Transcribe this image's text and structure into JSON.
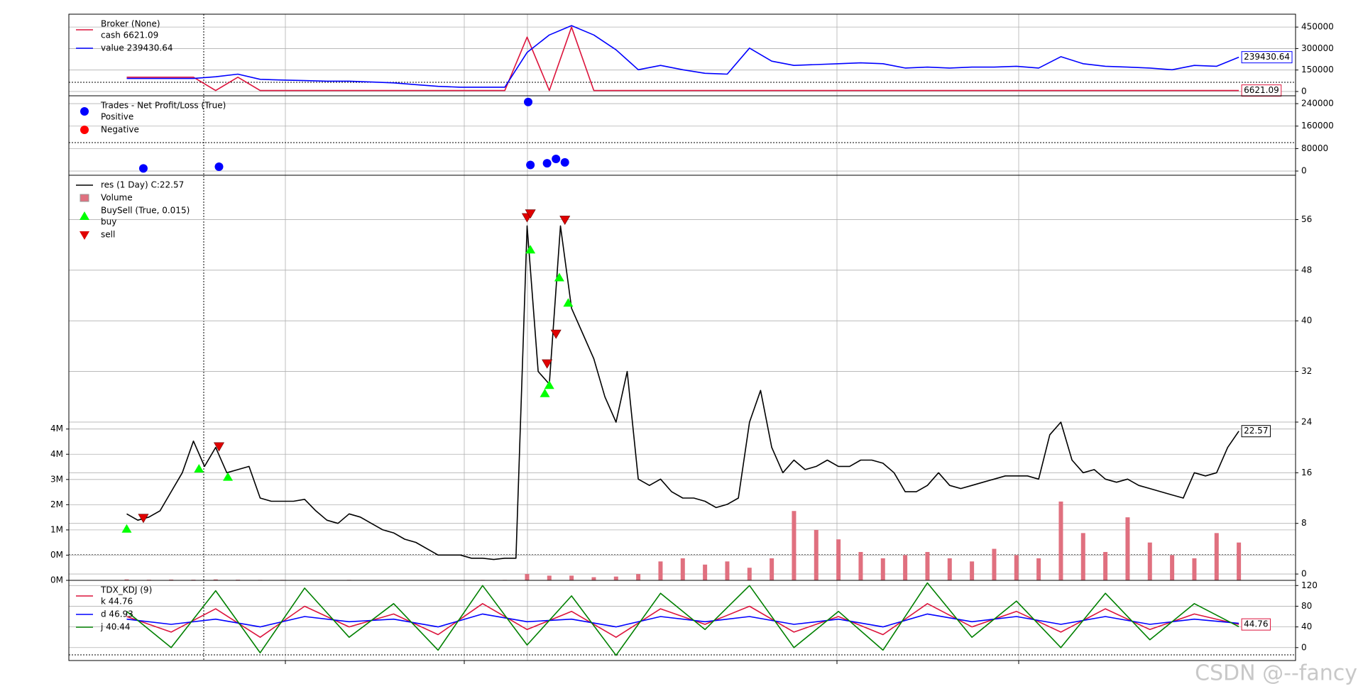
{
  "chart_data": [
    {
      "type": "line",
      "xlim": [
        -5.2,
        105.1
      ],
      "ylim": [
        -30000,
        540000
      ],
      "yticks": [
        0,
        150000,
        300000,
        450000
      ],
      "grid": true,
      "series": [
        {
          "name": "cash 6621.09",
          "group_title": "Broker (None)",
          "type": "line",
          "color": "#dc143c",
          "tag": true,
          "x": [
            0,
            2,
            4,
            6,
            8,
            10,
            12,
            14,
            16,
            18,
            20,
            22,
            24,
            26,
            28,
            30,
            32,
            34,
            36,
            38,
            40,
            42,
            44,
            46,
            48,
            50,
            52,
            54,
            56,
            58,
            60,
            62,
            64,
            66,
            68,
            70,
            72,
            74,
            76,
            78,
            80,
            82,
            84,
            86,
            88,
            90,
            92,
            94,
            96,
            98,
            100
          ],
          "values": [
            100000,
            100000,
            100000,
            100000,
            6621.09,
            100000,
            6621.09,
            6621.09,
            6621.09,
            6621.09,
            6621.09,
            6621.09,
            6621.09,
            6621.09,
            6621.09,
            6621.09,
            6621.09,
            6621.09,
            380000,
            6621.09,
            450000,
            6621.09,
            6621.09,
            6621.09,
            6621.09,
            6621.09,
            6621.09,
            6621.09,
            6621.09,
            6621.09,
            6621.09,
            6621.09,
            6621.09,
            6621.09,
            6621.09,
            6621.09,
            6621.09,
            6621.09,
            6621.09,
            6621.09,
            6621.09,
            6621.09,
            6621.09,
            6621.09,
            6621.09,
            6621.09,
            6621.09,
            6621.09,
            6621.09,
            6621.09,
            6621.09
          ]
        },
        {
          "name": "value 239430.64",
          "type": "line",
          "color": "#0000ff",
          "tag": true,
          "x": [
            0,
            2,
            4,
            6,
            8,
            10,
            12,
            14,
            16,
            18,
            20,
            22,
            24,
            26,
            28,
            30,
            32,
            34,
            36,
            38,
            40,
            42,
            44,
            46,
            48,
            50,
            52,
            54,
            56,
            58,
            60,
            62,
            64,
            66,
            68,
            70,
            72,
            74,
            76,
            78,
            80,
            82,
            84,
            86,
            88,
            90,
            92,
            94,
            96,
            98,
            100
          ],
          "values": [
            91000,
            91000,
            91000,
            91000,
            103000,
            121000,
            85000,
            80000,
            76000,
            72000,
            72000,
            66000,
            60000,
            48000,
            36000,
            30000,
            30000,
            30000,
            273000,
            395000,
            460000,
            395000,
            291000,
            152000,
            182000,
            152000,
            127000,
            121000,
            303000,
            212000,
            182000,
            188000,
            194000,
            200000,
            194000,
            164000,
            170000,
            164000,
            170000,
            170000,
            176000,
            164000,
            243000,
            194000,
            176000,
            170000,
            164000,
            152000,
            182000,
            176000,
            239430.64
          ]
        }
      ]
    },
    {
      "type": "scatter",
      "xlim": [
        -5.2,
        105.1
      ],
      "ylim": [
        -15000,
        268000
      ],
      "yticks": [
        0,
        80000,
        160000,
        240000
      ],
      "grid": true,
      "series": [
        {
          "name": "Positive",
          "group_title": "Trades - Net Profit/Loss (True)",
          "type": "scatter",
          "marker": "circle",
          "color": "#0000ff",
          "x": [
            1.5,
            8.3,
            36.1,
            36.3,
            37.8,
            38.6,
            39.4
          ],
          "values": [
            9200,
            15400,
            246000,
            21500,
            27700,
            43000,
            30800
          ]
        },
        {
          "name": "Negative",
          "type": "scatter",
          "marker": "circle",
          "color": "#ff0000",
          "x": [],
          "values": []
        }
      ]
    },
    {
      "type": "line",
      "xlim": [
        -5.2,
        105.1
      ],
      "ylim": [
        -1,
        63
      ],
      "yticks": [
        0,
        8,
        16,
        24,
        32,
        40,
        48,
        56
      ],
      "y2lim": [
        0,
        12850000
      ],
      "y2ticks": [
        {
          "value": 0,
          "label": "0M"
        },
        {
          "value": 800000,
          "label": "0M"
        },
        {
          "value": 1600000,
          "label": "1M"
        },
        {
          "value": 2400000,
          "label": "2M"
        },
        {
          "value": 3200000,
          "label": "3M"
        },
        {
          "value": 4000000,
          "label": "4M"
        },
        {
          "value": 4800000,
          "label": "4M"
        }
      ],
      "grid": true,
      "series": [
        {
          "name": "res (1 Day) C:22.57",
          "type": "line",
          "color": "#000000",
          "tag": true,
          "x": [
            0,
            1,
            2,
            3,
            4,
            5,
            6,
            7,
            8,
            9,
            10,
            11,
            12,
            13,
            14,
            15,
            16,
            17,
            18,
            19,
            20,
            21,
            22,
            23,
            24,
            25,
            26,
            27,
            28,
            29,
            30,
            31,
            32,
            33,
            34,
            35,
            36,
            37,
            38,
            39,
            40,
            41,
            42,
            43,
            44,
            45,
            46,
            47,
            48,
            49,
            50,
            51,
            52,
            53,
            54,
            55,
            56,
            57,
            58,
            59,
            60,
            61,
            62,
            63,
            64,
            65,
            66,
            67,
            68,
            69,
            70,
            71,
            72,
            73,
            74,
            75,
            76,
            77,
            78,
            79,
            80,
            81,
            82,
            83,
            84,
            85,
            86,
            87,
            88,
            89,
            90,
            91,
            92,
            93,
            94,
            95,
            96,
            97,
            98,
            99,
            100
          ],
          "values": [
            9.5,
            8.5,
            9,
            10,
            13,
            16,
            21,
            17,
            20,
            16,
            16.5,
            17,
            12,
            11.5,
            11.5,
            11.5,
            11.8,
            10,
            8.5,
            8,
            9.5,
            9,
            8,
            7,
            6.5,
            5.5,
            5,
            4,
            3,
            3,
            3,
            2.5,
            2.5,
            2.3,
            2.5,
            2.5,
            55,
            32,
            30,
            55,
            42,
            38,
            34,
            28,
            24,
            32,
            15,
            14,
            15,
            13,
            12,
            12,
            11.5,
            10.5,
            11,
            12,
            24,
            29,
            20,
            16,
            18,
            16.5,
            17,
            18,
            17,
            17,
            18,
            18,
            17.5,
            16,
            13,
            13,
            14,
            16,
            14,
            13.5,
            14,
            14.5,
            15,
            15.5,
            15.5,
            15.5,
            15,
            22,
            24,
            18,
            16,
            16.5,
            15,
            14.5,
            15,
            14,
            13.5,
            13,
            12.5,
            12,
            16,
            15.5,
            16,
            20,
            22.57
          ]
        },
        {
          "name": "Volume",
          "type": "bar",
          "axis": "y2",
          "color": "#e0707f",
          "x": [
            0,
            2,
            4,
            6,
            8,
            10,
            12,
            14,
            16,
            18,
            20,
            22,
            24,
            26,
            28,
            30,
            32,
            34,
            36,
            38,
            40,
            42,
            44,
            46,
            48,
            50,
            52,
            54,
            56,
            58,
            60,
            62,
            64,
            66,
            68,
            70,
            72,
            74,
            76,
            78,
            80,
            82,
            84,
            86,
            88,
            90,
            92,
            94,
            96,
            98,
            100
          ],
          "values": [
            30000,
            20000,
            25000,
            20000,
            30000,
            20000,
            15000,
            15000,
            10000,
            10000,
            15000,
            10000,
            10000,
            10000,
            10000,
            10000,
            15000,
            15000,
            200000,
            150000,
            150000,
            100000,
            120000,
            200000,
            600000,
            700000,
            500000,
            600000,
            400000,
            700000,
            2200000,
            1600000,
            1300000,
            900000,
            700000,
            800000,
            900000,
            700000,
            600000,
            1000000,
            800000,
            700000,
            2500000,
            1500000,
            900000,
            2000000,
            1200000,
            800000,
            700000,
            1500000,
            1200000
          ]
        },
        {
          "name": "buy",
          "group_title": "BuySell (True, 0.015)",
          "type": "scatter",
          "marker": "triangle-up",
          "color": "#00ff00",
          "x": [
            0,
            6.5,
            9.1,
            36.3,
            37.6,
            38.0,
            38.9,
            39.7
          ],
          "values": [
            7.1,
            16.6,
            15.3,
            51.2,
            28.5,
            29.8,
            46.8,
            42.8
          ]
        },
        {
          "name": "sell",
          "type": "scatter",
          "marker": "triangle-down",
          "color": "#e00000",
          "x": [
            1.5,
            8.3,
            36.0,
            36.3,
            37.8,
            38.6,
            39.4
          ],
          "values": [
            8.9,
            20.2,
            56.4,
            57,
            33.3,
            38,
            56
          ]
        }
      ]
    },
    {
      "type": "line",
      "xlim": [
        -5.2,
        105.1
      ],
      "ylim": [
        -25,
        130
      ],
      "yticks": [
        0,
        40,
        80,
        120
      ],
      "grid": true,
      "series": [
        {
          "name": "k 44.76",
          "group_title": "TDX_KDJ (9)",
          "type": "line",
          "color": "#dc143c",
          "tag": true,
          "x": [
            0,
            4,
            8,
            12,
            16,
            20,
            24,
            28,
            32,
            36,
            40,
            44,
            48,
            52,
            56,
            60,
            64,
            68,
            72,
            76,
            80,
            84,
            88,
            92,
            96,
            100
          ],
          "values": [
            60,
            30,
            75,
            20,
            80,
            40,
            65,
            25,
            85,
            35,
            70,
            20,
            75,
            45,
            80,
            30,
            60,
            25,
            85,
            40,
            70,
            30,
            75,
            35,
            65,
            44.76
          ]
        },
        {
          "name": "d 46.93",
          "type": "line",
          "color": "#0000ff",
          "x": [
            0,
            4,
            8,
            12,
            16,
            20,
            24,
            28,
            32,
            36,
            40,
            44,
            48,
            52,
            56,
            60,
            64,
            68,
            72,
            76,
            80,
            84,
            88,
            92,
            96,
            100
          ],
          "values": [
            55,
            45,
            55,
            40,
            60,
            50,
            55,
            40,
            65,
            50,
            55,
            40,
            60,
            50,
            60,
            45,
            55,
            40,
            65,
            50,
            60,
            45,
            60,
            45,
            55,
            46.93
          ]
        },
        {
          "name": "j 40.44",
          "type": "line",
          "color": "#008000",
          "x": [
            0,
            4,
            8,
            12,
            16,
            20,
            24,
            28,
            32,
            36,
            40,
            44,
            48,
            52,
            56,
            60,
            64,
            68,
            72,
            76,
            80,
            84,
            88,
            92,
            96,
            100
          ],
          "values": [
            70,
            0,
            110,
            -10,
            115,
            20,
            85,
            -5,
            120,
            5,
            100,
            -15,
            105,
            35,
            120,
            0,
            70,
            -5,
            125,
            20,
            90,
            0,
            105,
            15,
            85,
            40.44
          ]
        }
      ]
    }
  ],
  "watermark": "CSDN @--fancy"
}
